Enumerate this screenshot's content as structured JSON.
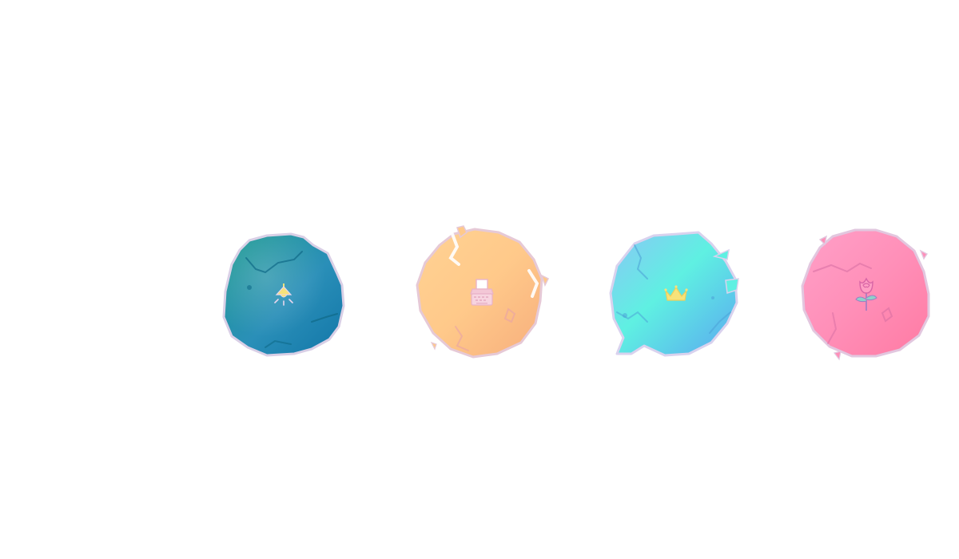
{
  "blobs": [
    {
      "id": "teal",
      "icon": "lamp-icon",
      "colors": {
        "a": "#1e9b91",
        "b": "#1276a8",
        "c": "#2a8fb8",
        "edge": "#d9cfe6",
        "icon": "#f7e27a"
      }
    },
    {
      "id": "orange",
      "icon": "typewriter-icon",
      "colors": {
        "a": "#ffc98a",
        "b": "#f7ae7c",
        "c": "#ffd293",
        "edge": "#e6c9d6",
        "icon": "#e9b3c8"
      }
    },
    {
      "id": "cyan",
      "icon": "crown-icon",
      "colors": {
        "a": "#5ff0e2",
        "b": "#5aa8f0",
        "c": "#8ac7f5",
        "edge": "#d9d2ee",
        "icon": "#f7e27a"
      }
    },
    {
      "id": "pink",
      "icon": "rose-icon",
      "colors": {
        "a": "#ff8fb8",
        "b": "#ff7aa3",
        "c": "#ffa0c8",
        "edge": "#e2c7df",
        "icon": "#d866a6"
      }
    }
  ]
}
